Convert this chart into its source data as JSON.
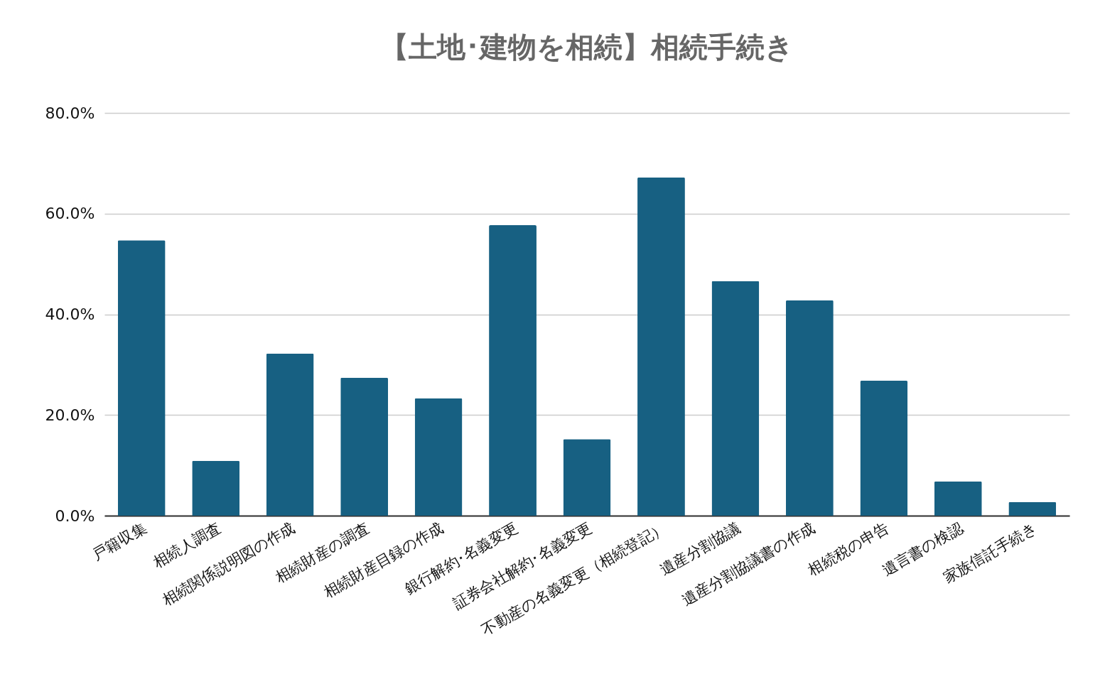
{
  "chart_data": {
    "type": "bar",
    "title": "【土地･建物を相続】相続手続き",
    "categories": [
      "戸籍収集",
      "相続人調査",
      "相続関係説明図の作成",
      "相続財産の調査",
      "相続財産目録の作成",
      "銀行解約･名義変更",
      "証券会社解約･名義変更",
      "不動産の名義変更（相続登記）",
      "遺産分割協議",
      "遺産分割協議書の作成",
      "相続税の申告",
      "遺言書の検認",
      "家族信託手続き"
    ],
    "values": [
      54.7,
      10.9,
      32.2,
      27.4,
      23.3,
      57.7,
      15.2,
      67.2,
      46.6,
      42.8,
      26.8,
      6.8,
      2.7
    ],
    "color": "#176082",
    "ylim": [
      0,
      80
    ],
    "yticks": [
      {
        "value": 0,
        "label": "0.0%"
      },
      {
        "value": 20,
        "label": "20.0%"
      },
      {
        "value": 40,
        "label": "40.0%"
      },
      {
        "value": 60,
        "label": "60.0%"
      },
      {
        "value": 80,
        "label": "80.0%"
      }
    ],
    "grid": "y"
  }
}
